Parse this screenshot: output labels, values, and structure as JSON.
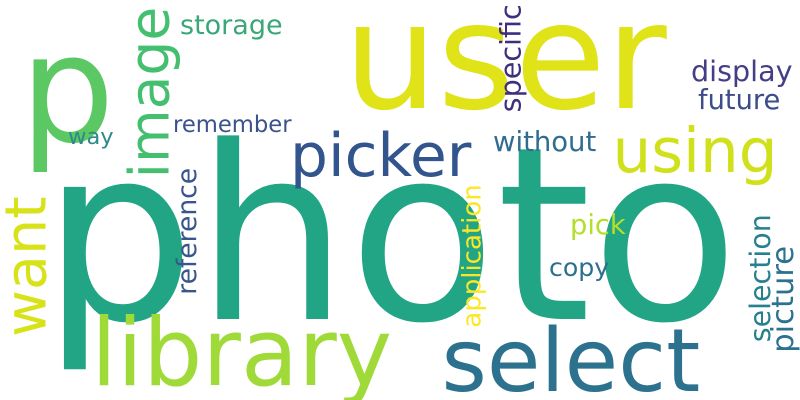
{
  "words": [
    {
      "text": "photo",
      "color": "#21a585",
      "orientation": "horizontal"
    },
    {
      "text": "user",
      "color": "#dfe318",
      "orientation": "horizontal"
    },
    {
      "text": "p",
      "color": "#5cc863",
      "orientation": "horizontal"
    },
    {
      "text": "select",
      "color": "#2c728e",
      "orientation": "horizontal"
    },
    {
      "text": "library",
      "color": "#a0da39",
      "orientation": "horizontal"
    },
    {
      "text": "picker",
      "color": "#31558c",
      "orientation": "horizontal"
    },
    {
      "text": "using",
      "color": "#d0e11c",
      "orientation": "horizontal"
    },
    {
      "text": "image",
      "color": "#44bf70",
      "orientation": "vertical"
    },
    {
      "text": "want",
      "color": "#d8e219",
      "orientation": "vertical"
    },
    {
      "text": "specific",
      "color": "#3e2f7e",
      "orientation": "vertical"
    },
    {
      "text": "storage",
      "color": "#3ba779",
      "orientation": "horizontal"
    },
    {
      "text": "display",
      "color": "#433e85",
      "orientation": "horizontal"
    },
    {
      "text": "future",
      "color": "#3c4d8a",
      "orientation": "horizontal"
    },
    {
      "text": "remember",
      "color": "#3b528b",
      "orientation": "horizontal"
    },
    {
      "text": "way",
      "color": "#2d8b88",
      "orientation": "horizontal"
    },
    {
      "text": "without",
      "color": "#2f6c8e",
      "orientation": "horizontal"
    },
    {
      "text": "reference",
      "color": "#39568c",
      "orientation": "vertical"
    },
    {
      "text": "application",
      "color": "#fde725",
      "orientation": "vertical"
    },
    {
      "text": "pick",
      "color": "#b5de2b",
      "orientation": "horizontal"
    },
    {
      "text": "copy",
      "color": "#2d708e",
      "orientation": "horizontal"
    },
    {
      "text": "selection",
      "color": "#27808e",
      "orientation": "vertical"
    },
    {
      "text": "picture",
      "color": "#2c728e",
      "orientation": "vertical"
    }
  ]
}
